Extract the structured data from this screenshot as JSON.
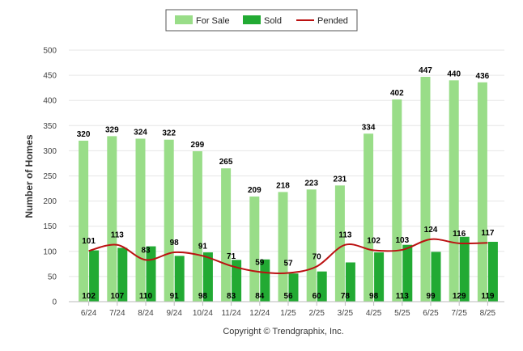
{
  "chart_data": {
    "type": "bar",
    "categories": [
      "6/24",
      "7/24",
      "8/24",
      "9/24",
      "10/24",
      "11/24",
      "12/24",
      "1/25",
      "2/25",
      "3/25",
      "4/25",
      "5/25",
      "6/25",
      "7/25",
      "8/25"
    ],
    "series": [
      {
        "name": "For Sale",
        "type": "bar",
        "color": "#99dd88",
        "values": [
          320,
          329,
          324,
          322,
          299,
          265,
          209,
          218,
          223,
          231,
          334,
          402,
          447,
          440,
          436
        ]
      },
      {
        "name": "Sold",
        "type": "bar",
        "color": "#22aa33",
        "values": [
          102,
          107,
          110,
          91,
          98,
          83,
          84,
          56,
          60,
          78,
          98,
          113,
          99,
          129,
          119
        ]
      },
      {
        "name": "Pended",
        "type": "line",
        "color": "#bb1111",
        "values": [
          101,
          113,
          83,
          98,
          91,
          71,
          59,
          57,
          70,
          113,
          102,
          103,
          124,
          116,
          117
        ]
      }
    ],
    "ylabel": "Number of Homes",
    "xlabel": "",
    "ylim": [
      0,
      500
    ],
    "yticks": [
      0,
      50,
      100,
      150,
      200,
      250,
      300,
      350,
      400,
      450,
      500
    ],
    "grid": true,
    "legend": "top-center"
  },
  "footer": {
    "copyright": "Copyright © Trendgraphix, Inc."
  }
}
